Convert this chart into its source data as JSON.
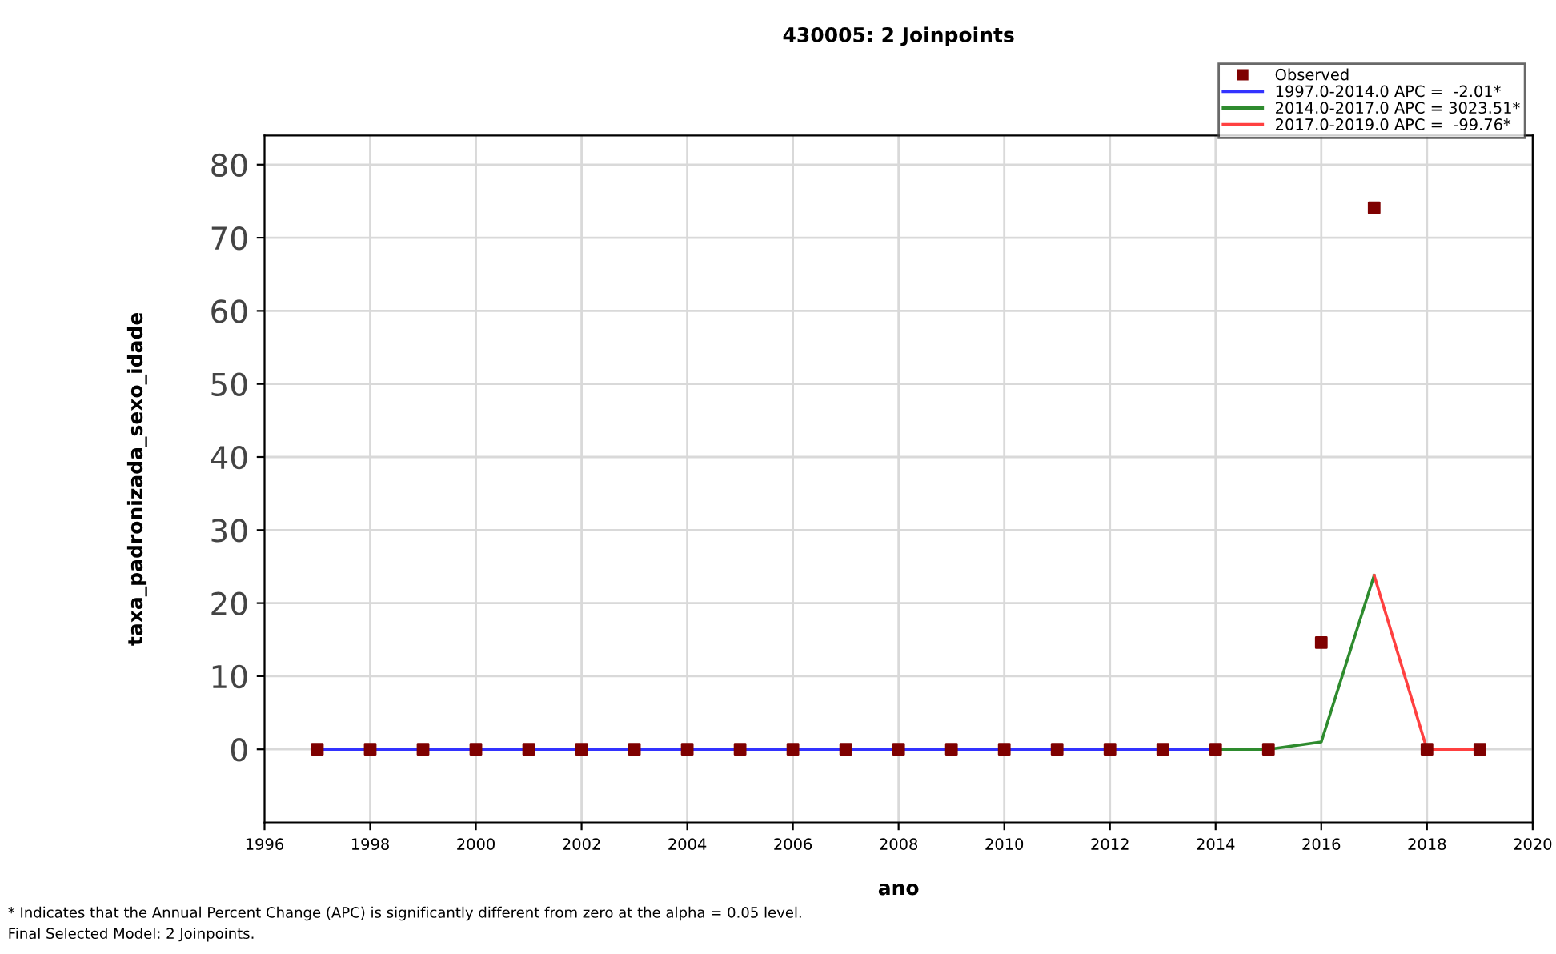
{
  "chart_data": {
    "type": "scatter",
    "title": "430005: 2 Joinpoints",
    "xlabel": "ano",
    "ylabel": "taxa_padronizada_sexo_idade",
    "series": [
      {
        "name": "Observed",
        "marker": "square",
        "color": "#7f0000",
        "x": [
          1997,
          1998,
          1999,
          2000,
          2001,
          2002,
          2003,
          2004,
          2005,
          2006,
          2007,
          2008,
          2009,
          2010,
          2011,
          2012,
          2013,
          2014,
          2015,
          2016,
          2017,
          2018,
          2019
        ],
        "values": [
          0,
          0,
          0,
          0,
          0,
          0,
          0,
          0,
          0,
          0,
          0,
          0,
          0,
          0,
          0,
          0,
          0,
          0,
          0,
          14.6,
          74.1,
          0,
          0
        ]
      },
      {
        "name": "1997.0-2014.0 APC =  -2.01*",
        "type": "line",
        "color": "#3333ff",
        "x": [
          1997,
          2014
        ],
        "values": [
          0,
          0
        ]
      },
      {
        "name": "2014.0-2017.0 APC = 3023.51*",
        "type": "line",
        "color": "#2e8b2e",
        "x": [
          2014,
          2015,
          2016,
          2017
        ],
        "values": [
          0,
          0,
          1,
          23.8
        ]
      },
      {
        "name": "2017.0-2019.0 APC =  -99.76*",
        "type": "line",
        "color": "#ff4040",
        "x": [
          2017,
          2018,
          2019
        ],
        "values": [
          23.8,
          0,
          0
        ]
      }
    ],
    "xlim": [
      1996,
      2020
    ],
    "xticks": [
      1996,
      1998,
      2000,
      2002,
      2004,
      2006,
      2008,
      2010,
      2012,
      2014,
      2016,
      2018,
      2020
    ],
    "ylim": [
      -10,
      84
    ],
    "yticks": [
      0,
      10,
      20,
      30,
      40,
      50,
      60,
      70,
      80
    ],
    "grid": true,
    "legend": "top right",
    "annotations": [
      "* Indicates that the Annual Percent Change (APC) is significantly different from zero at the alpha = 0.05 level.",
      "Final Selected Model: 2 Joinpoints."
    ]
  }
}
